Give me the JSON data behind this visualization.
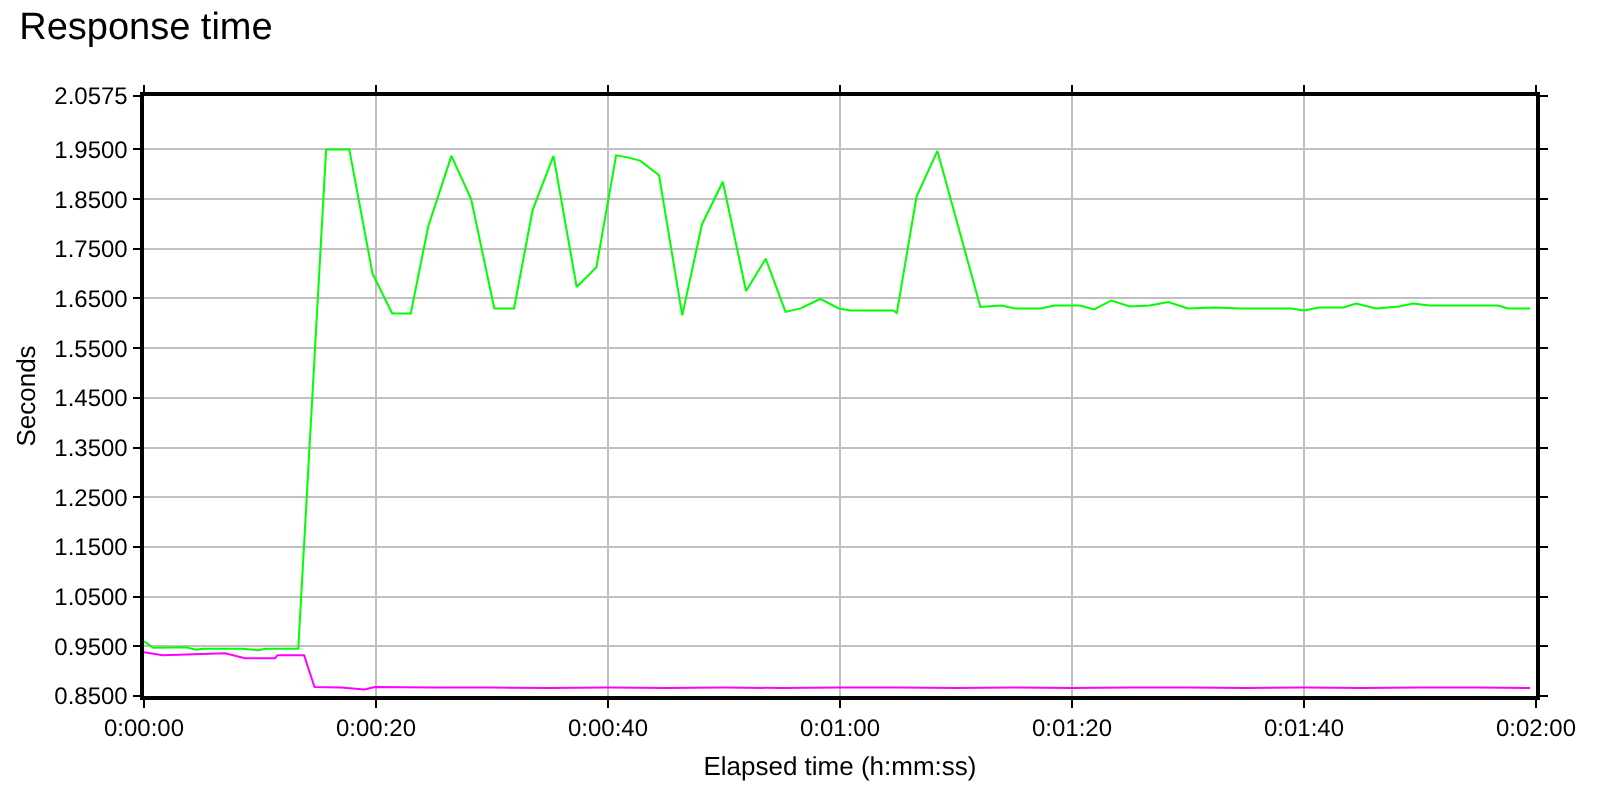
{
  "chart_data": {
    "type": "line",
    "title": "Response time",
    "xlabel": "Elapsed time (h:mm:ss)",
    "ylabel": "Seconds",
    "xlim": [
      0,
      120
    ],
    "xticks": [
      {
        "value": 0,
        "label": "0:00:00"
      },
      {
        "value": 20,
        "label": "0:00:20"
      },
      {
        "value": 40,
        "label": "0:00:40"
      },
      {
        "value": 60,
        "label": "0:01:00"
      },
      {
        "value": 80,
        "label": "0:01:20"
      },
      {
        "value": 100,
        "label": "0:01:40"
      },
      {
        "value": 120,
        "label": "0:02:00"
      }
    ],
    "ylim": [
      0.85,
      2.0575
    ],
    "yticks": [
      {
        "value": 0.85,
        "label": "0.8500"
      },
      {
        "value": 0.95,
        "label": "0.9500"
      },
      {
        "value": 1.05,
        "label": "1.0500"
      },
      {
        "value": 1.15,
        "label": "1.1500"
      },
      {
        "value": 1.25,
        "label": "1.2500"
      },
      {
        "value": 1.35,
        "label": "1.3500"
      },
      {
        "value": 1.45,
        "label": "1.4500"
      },
      {
        "value": 1.55,
        "label": "1.5500"
      },
      {
        "value": 1.65,
        "label": "1.6500"
      },
      {
        "value": 1.75,
        "label": "1.7500"
      },
      {
        "value": 1.85,
        "label": "1.8500"
      },
      {
        "value": 1.95,
        "label": "1.9500"
      },
      {
        "value": 2.0575,
        "label": "2.0575"
      }
    ],
    "grid": true,
    "marker": "none",
    "line_style": "solid",
    "series": [
      {
        "color": "#00ff00",
        "x": [
          0,
          0.8,
          3.6,
          4.5,
          5.1,
          8.5,
          9.8,
          10.5,
          11.5,
          13.3,
          15.7,
          17.7,
          19.7,
          21.4,
          23.0,
          24.5,
          26.5,
          28.2,
          30.2,
          31.9,
          33.5,
          35.3,
          37.3,
          39.0,
          40.7,
          41.7,
          42.8,
          44.4,
          46.4,
          48.1,
          49.9,
          51.9,
          53.6,
          55.3,
          56.6,
          58.3,
          59.9,
          60.9,
          64.6,
          64.9,
          66.6,
          68.4,
          72.1,
          73.9,
          75.1,
          77.3,
          78.5,
          80.7,
          81.9,
          83.4,
          85.0,
          86.7,
          88.3,
          90.0,
          92.3,
          94.6,
          98.9,
          100.0,
          101.3,
          103.4,
          104.5,
          106.2,
          108.2,
          109.4,
          110.8,
          116.7,
          117.6,
          119.5
        ],
        "values": [
          0.96,
          0.947,
          0.948,
          0.943,
          0.945,
          0.945,
          0.942,
          0.945,
          0.945,
          0.945,
          1.95,
          1.95,
          1.7,
          1.62,
          1.62,
          1.795,
          1.937,
          1.85,
          1.63,
          1.63,
          1.828,
          1.937,
          1.673,
          1.713,
          1.938,
          1.934,
          1.927,
          1.898,
          1.616,
          1.799,
          1.885,
          1.665,
          1.73,
          1.623,
          1.63,
          1.649,
          1.63,
          1.626,
          1.626,
          1.621,
          1.855,
          1.947,
          1.633,
          1.636,
          1.63,
          1.63,
          1.636,
          1.636,
          1.628,
          1.646,
          1.634,
          1.636,
          1.643,
          1.63,
          1.632,
          1.63,
          1.63,
          1.626,
          1.632,
          1.632,
          1.64,
          1.63,
          1.634,
          1.64,
          1.636,
          1.636,
          1.63,
          1.63
        ]
      },
      {
        "color": "#ff00ff",
        "x": [
          0,
          1.6,
          7.0,
          8.7,
          11.3,
          11.5,
          13.8,
          14.7,
          17.0,
          19.0,
          19.9,
          25,
          30,
          35,
          40,
          45,
          50,
          55,
          60,
          65,
          70,
          75,
          80,
          85,
          90,
          95,
          100,
          105,
          110,
          115,
          119.5
        ],
        "values": [
          0.938,
          0.932,
          0.936,
          0.926,
          0.926,
          0.932,
          0.932,
          0.868,
          0.867,
          0.863,
          0.868,
          0.867,
          0.867,
          0.866,
          0.867,
          0.866,
          0.867,
          0.866,
          0.867,
          0.867,
          0.866,
          0.867,
          0.866,
          0.867,
          0.867,
          0.866,
          0.867,
          0.866,
          0.867,
          0.867,
          0.866
        ]
      }
    ]
  }
}
